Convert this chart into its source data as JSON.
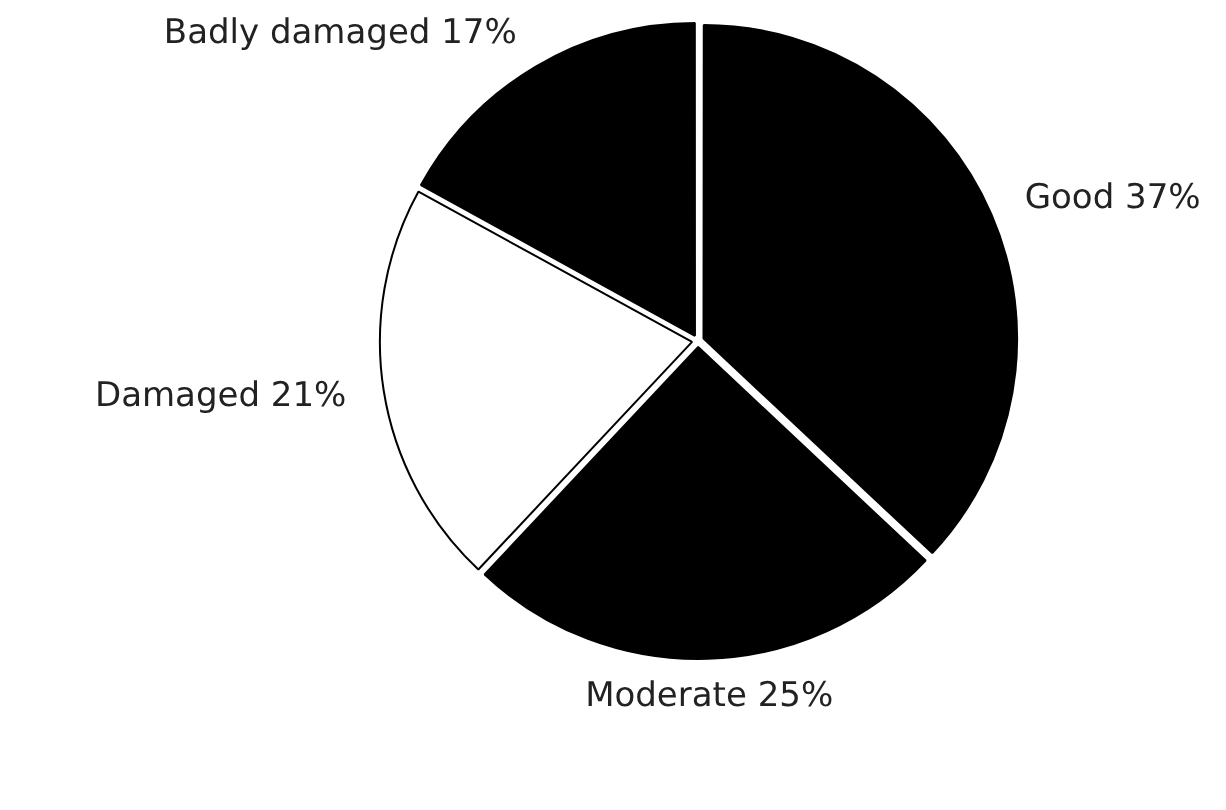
{
  "chart_data": {
    "type": "pie",
    "categories": [
      "Good",
      "Moderate",
      "Damaged",
      "Badly damaged"
    ],
    "values": [
      37,
      25,
      21,
      17
    ],
    "value_labels": [
      "37%",
      "25%",
      "21%",
      "17%"
    ],
    "colors": [
      "#000000",
      "#000000",
      "#ffffff",
      "#000000"
    ],
    "legend": false
  }
}
